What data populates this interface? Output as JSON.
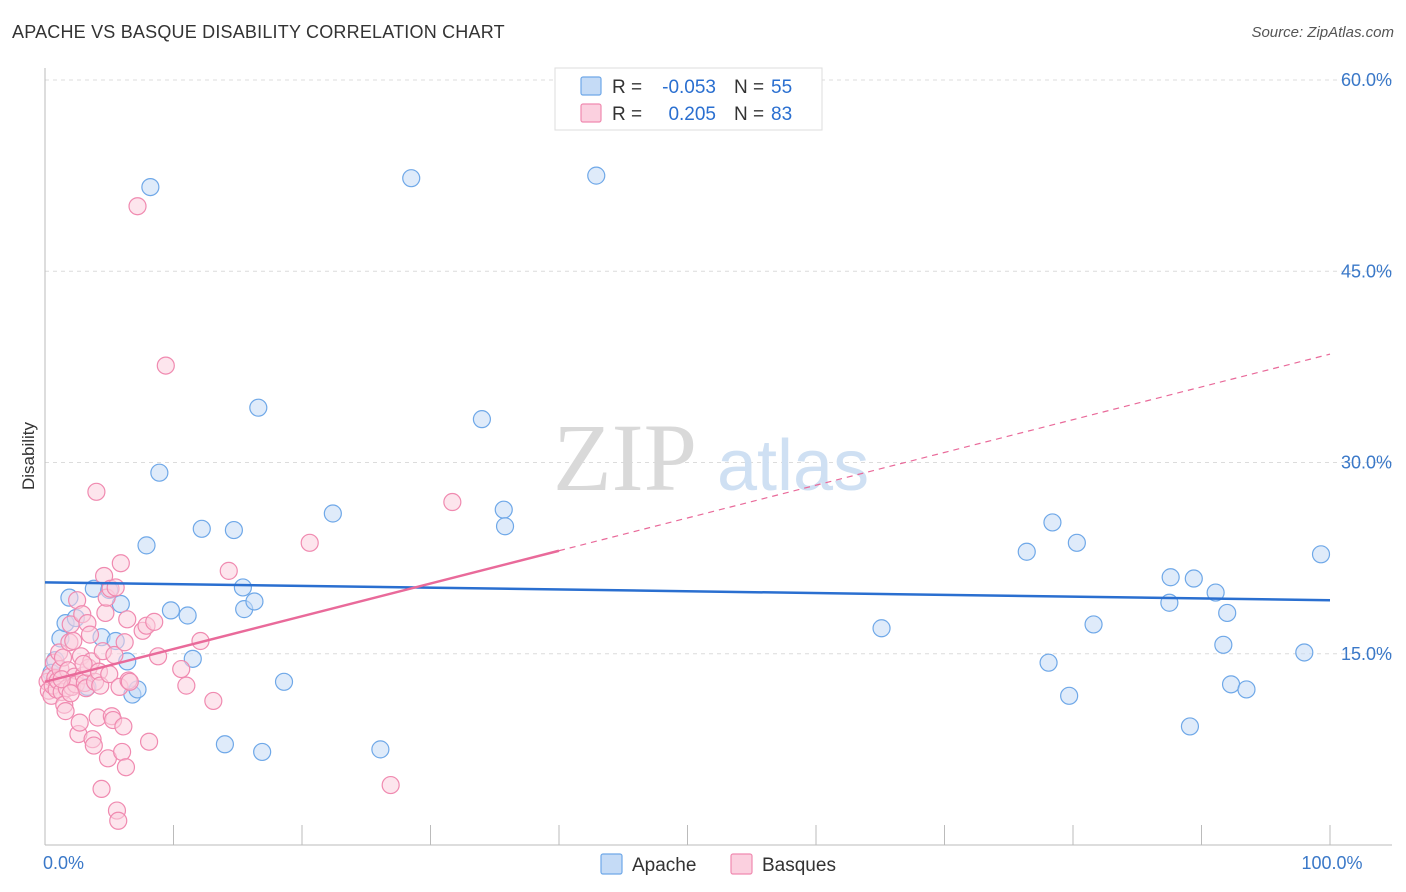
{
  "header": {
    "title": "APACHE VS BASQUE DISABILITY CORRELATION CHART",
    "source": "Source: ZipAtlas.com"
  },
  "watermark": {
    "zip": "ZIP",
    "atlas": "atlas"
  },
  "legend_top": {
    "rows": [
      {
        "r_label": "R =",
        "r_value": "-0.053",
        "n_label": "N =",
        "n_value": "55",
        "color": "#6fa8e8",
        "fill": "#c5dbf6"
      },
      {
        "r_label": "R =",
        "r_value": "0.205",
        "n_label": "N =",
        "n_value": "83",
        "color": "#f08ab0",
        "fill": "#fbd0df"
      }
    ]
  },
  "legend_bottom": {
    "items": [
      {
        "label": "Apache",
        "color": "#6fa8e8",
        "fill": "#c5dbf6"
      },
      {
        "label": "Basques",
        "color": "#f08ab0",
        "fill": "#fbd0df"
      }
    ]
  },
  "chart_data": {
    "type": "scatter",
    "title": "APACHE VS BASQUE DISABILITY CORRELATION CHART",
    "xlabel": "",
    "ylabel": "Disability",
    "xlim": [
      0,
      100
    ],
    "ylim": [
      0,
      62
    ],
    "x_tick_labels": [
      {
        "value": 0,
        "label": "0.0%"
      },
      {
        "value": 100,
        "label": "100.0%"
      }
    ],
    "y_ticks": [
      {
        "value": 15,
        "label": "15.0%"
      },
      {
        "value": 30,
        "label": "30.0%"
      },
      {
        "value": 45,
        "label": "45.0%"
      },
      {
        "value": 60,
        "label": "60.0%"
      }
    ],
    "x_minor_ticks": [
      10,
      20,
      30,
      40,
      50,
      60,
      70,
      80,
      90,
      100
    ],
    "grid": true,
    "series": [
      {
        "name": "Apache",
        "color": "#6fa8e8",
        "fill": "#c5dbf6",
        "trend": {
          "x0": 0,
          "y0": 20.6,
          "x1": 100,
          "y1": 19.2,
          "dashed_from": null,
          "line_color": "#2a6fd0"
        },
        "points": [
          [
            0.8,
            14.5
          ],
          [
            1.2,
            16.2
          ],
          [
            1.6,
            17.4
          ],
          [
            1.9,
            19.4
          ],
          [
            2.4,
            17.8
          ],
          [
            3.3,
            12.4
          ],
          [
            3.8,
            20.1
          ],
          [
            4.4,
            16.3
          ],
          [
            5,
            20
          ],
          [
            5.5,
            16
          ],
          [
            5.9,
            18.9
          ],
          [
            6.4,
            14.4
          ],
          [
            6.8,
            11.8
          ],
          [
            7.2,
            12.2
          ],
          [
            7.9,
            23.5
          ],
          [
            8.2,
            51.6
          ],
          [
            8.9,
            29.2
          ],
          [
            9.8,
            18.4
          ],
          [
            11.1,
            18
          ],
          [
            11.5,
            14.6
          ],
          [
            12.2,
            24.8
          ],
          [
            14,
            7.9
          ],
          [
            14.7,
            24.7
          ],
          [
            15.4,
            20.2
          ],
          [
            15.5,
            18.5
          ],
          [
            16.3,
            19.1
          ],
          [
            16.6,
            34.3
          ],
          [
            16.9,
            7.3
          ],
          [
            18.6,
            12.8
          ],
          [
            22.4,
            26
          ],
          [
            26.1,
            7.5
          ],
          [
            28.5,
            52.3
          ],
          [
            34,
            33.4
          ],
          [
            35.7,
            26.3
          ],
          [
            35.8,
            25
          ],
          [
            42.9,
            52.5
          ],
          [
            65.1,
            17
          ],
          [
            76.4,
            23
          ],
          [
            78.1,
            14.3
          ],
          [
            78.4,
            25.3
          ],
          [
            79.7,
            11.7
          ],
          [
            80.3,
            23.7
          ],
          [
            81.6,
            17.3
          ],
          [
            87.6,
            21
          ],
          [
            87.5,
            19
          ],
          [
            89.4,
            20.9
          ],
          [
            91.1,
            19.8
          ],
          [
            89.1,
            9.3
          ],
          [
            91.7,
            15.7
          ],
          [
            92,
            18.2
          ],
          [
            92.3,
            12.6
          ],
          [
            93.5,
            12.2
          ],
          [
            98,
            15.1
          ],
          [
            99.3,
            22.8
          ],
          [
            0.5,
            13.5
          ]
        ]
      },
      {
        "name": "Basques",
        "color": "#f08ab0",
        "fill": "#fbd0df",
        "trend": {
          "x0": 0,
          "y0": 12.8,
          "x1": 100,
          "y1": 38.5,
          "dashed_from": 40,
          "line_color": "#e96a9a"
        },
        "points": [
          [
            0.2,
            12.8
          ],
          [
            0.3,
            12.1
          ],
          [
            0.4,
            13.2
          ],
          [
            0.5,
            11.7
          ],
          [
            0.6,
            12.5
          ],
          [
            0.7,
            14.3
          ],
          [
            0.8,
            13.1
          ],
          [
            0.9,
            12.2
          ],
          [
            1,
            12.9
          ],
          [
            1.1,
            15.1
          ],
          [
            1.2,
            13.8
          ],
          [
            1.3,
            12
          ],
          [
            1.4,
            14.7
          ],
          [
            1.5,
            11
          ],
          [
            1.6,
            10.5
          ],
          [
            1.7,
            12.3
          ],
          [
            1.8,
            13.7
          ],
          [
            1.9,
            15.9
          ],
          [
            2,
            17.3
          ],
          [
            2.1,
            12.4
          ],
          [
            2.2,
            16
          ],
          [
            2.3,
            13.2
          ],
          [
            2.4,
            12.6
          ],
          [
            2.5,
            19.2
          ],
          [
            2.6,
            8.7
          ],
          [
            2.7,
            9.6
          ],
          [
            2.8,
            14.8
          ],
          [
            2.9,
            18.1
          ],
          [
            3,
            13.3
          ],
          [
            3.1,
            12.7
          ],
          [
            3.2,
            12.3
          ],
          [
            3.3,
            17.4
          ],
          [
            3.4,
            13.9
          ],
          [
            3.5,
            16.5
          ],
          [
            3.6,
            14.4
          ],
          [
            3.7,
            8.3
          ],
          [
            3.8,
            7.8
          ],
          [
            3.9,
            12.8
          ],
          [
            4,
            27.7
          ],
          [
            4.1,
            10
          ],
          [
            4.2,
            13.6
          ],
          [
            4.3,
            12.5
          ],
          [
            4.4,
            4.4
          ],
          [
            4.5,
            15.2
          ],
          [
            4.6,
            21.1
          ],
          [
            4.7,
            18.2
          ],
          [
            4.8,
            19.4
          ],
          [
            4.9,
            6.8
          ],
          [
            5,
            13.4
          ],
          [
            5.1,
            20.1
          ],
          [
            5.2,
            10.1
          ],
          [
            5.3,
            9.8
          ],
          [
            5.4,
            14.9
          ],
          [
            5.5,
            20.2
          ],
          [
            5.6,
            2.7
          ],
          [
            5.7,
            1.9
          ],
          [
            5.8,
            12.4
          ],
          [
            5.9,
            22.1
          ],
          [
            6,
            7.3
          ],
          [
            6.1,
            9.3
          ],
          [
            6.2,
            15.9
          ],
          [
            6.3,
            6.1
          ],
          [
            6.4,
            17.7
          ],
          [
            6.5,
            12.9
          ],
          [
            6.6,
            12.8
          ],
          [
            7.2,
            50.1
          ],
          [
            7.6,
            16.8
          ],
          [
            7.9,
            17.2
          ],
          [
            8.1,
            8.1
          ],
          [
            8.5,
            17.5
          ],
          [
            8.8,
            14.8
          ],
          [
            9.4,
            37.6
          ],
          [
            10.6,
            13.8
          ],
          [
            11,
            12.5
          ],
          [
            12.1,
            16
          ],
          [
            13.1,
            11.3
          ],
          [
            14.3,
            21.5
          ],
          [
            20.6,
            23.7
          ],
          [
            26.9,
            4.7
          ],
          [
            31.7,
            26.9
          ],
          [
            1.3,
            13
          ],
          [
            2,
            11.9
          ],
          [
            3,
            14.2
          ]
        ]
      }
    ]
  }
}
